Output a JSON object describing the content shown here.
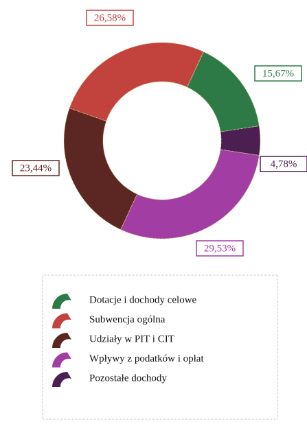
{
  "chart_data": {
    "type": "donut",
    "categories": [
      "Dotacje i dochody celowe",
      "Subwencja ogólna",
      "Udziały w PIT i CIT",
      "Wpływy z podatków i opłat",
      "Pozostałe dochody"
    ],
    "values": [
      15.67,
      26.58,
      23.44,
      29.53,
      4.78
    ],
    "value_labels": [
      "15,67%",
      "26,58%",
      "23,44%",
      "29,53%",
      "4,78%"
    ],
    "colors": [
      "#2d7a46",
      "#c2423d",
      "#5c2622",
      "#a23ea3",
      "#4b1f52"
    ]
  }
}
